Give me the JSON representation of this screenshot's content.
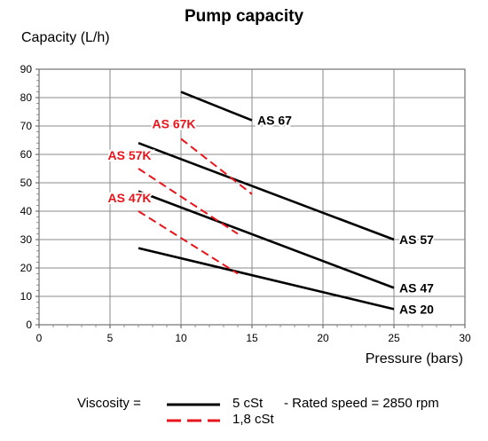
{
  "chart_data": {
    "type": "line",
    "title": "Pump capacity",
    "ylabel": "Capacity (L/h)",
    "xlabel": "Pressure (bars)",
    "xlim": [
      0,
      30
    ],
    "ylim": [
      0,
      90
    ],
    "xticks": [
      0,
      5,
      10,
      15,
      20,
      25,
      30
    ],
    "yticks": [
      0,
      10,
      20,
      30,
      40,
      50,
      60,
      70,
      80,
      90
    ],
    "grid": true,
    "series": [
      {
        "name": "AS 67",
        "viscosity": "5 cSt",
        "color": "#000000",
        "dash": false,
        "points": [
          [
            10,
            82
          ],
          [
            15,
            72
          ]
        ],
        "label_at": "end"
      },
      {
        "name": "AS 57",
        "viscosity": "5 cSt",
        "color": "#000000",
        "dash": false,
        "points": [
          [
            7,
            64
          ],
          [
            25,
            30
          ]
        ],
        "label_at": "end"
      },
      {
        "name": "AS 47",
        "viscosity": "5 cSt",
        "color": "#000000",
        "dash": false,
        "points": [
          [
            7,
            47
          ],
          [
            25,
            13
          ]
        ],
        "label_at": "end"
      },
      {
        "name": "AS 20",
        "viscosity": "5 cSt",
        "color": "#000000",
        "dash": false,
        "points": [
          [
            7,
            27
          ],
          [
            25,
            5.5
          ]
        ],
        "label_at": "end"
      },
      {
        "name": "AS 67K",
        "viscosity": "1,8 cSt",
        "color": "#e8141c",
        "dash": true,
        "points": [
          [
            10,
            65.5
          ],
          [
            15,
            46
          ]
        ],
        "label_at": "start"
      },
      {
        "name": "AS 57K",
        "viscosity": "1,8 cSt",
        "color": "#e8141c",
        "dash": true,
        "points": [
          [
            7,
            55
          ],
          [
            14,
            32
          ]
        ],
        "label_at": "start"
      },
      {
        "name": "AS 47K",
        "viscosity": "1,8 cSt",
        "color": "#e8141c",
        "dash": true,
        "points": [
          [
            7,
            40
          ],
          [
            14,
            18
          ]
        ],
        "label_at": "start"
      }
    ],
    "legend": {
      "prefix": "Viscosity =",
      "entries": [
        {
          "label": "5 cSt",
          "color": "#000000",
          "dash": false
        },
        {
          "label": "1,8 cSt",
          "color": "#e8141c",
          "dash": true
        }
      ],
      "note": "- Rated speed = 2850 rpm"
    }
  }
}
